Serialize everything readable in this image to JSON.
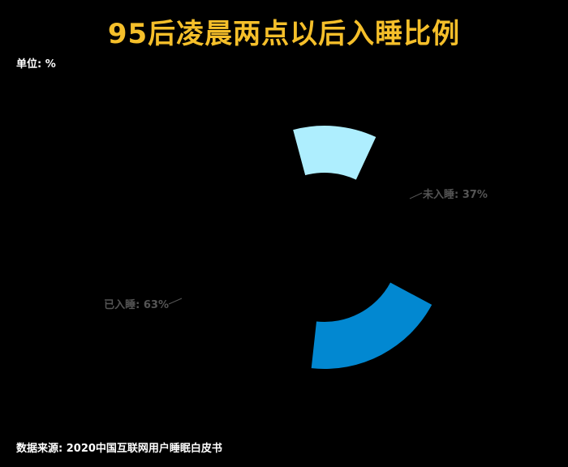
{
  "title": "95后凌晨两点以后入睡比例",
  "unit_label": "单位: %",
  "source_label": "数据来源: 2020中国互联网用户睡眠白皮书",
  "chart_data": {
    "type": "pie",
    "variant": "rose",
    "categories": [
      "未入睡",
      "已入睡"
    ],
    "values": [
      37,
      63
    ],
    "labels": [
      "未入睡: 37%",
      "已入睡: 63%"
    ],
    "colors": [
      "#aeeefe",
      "#0288d1"
    ],
    "label_color": "#555555",
    "legend": "none"
  }
}
